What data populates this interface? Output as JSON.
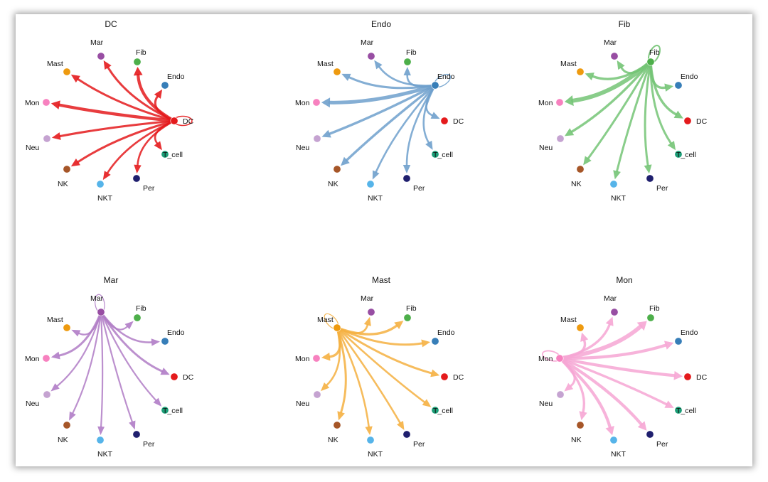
{
  "panels": [
    {
      "title": "DC",
      "source": "DC",
      "color": "#E41A1C",
      "edges": [
        {
          "target": "DC",
          "weight": 2
        },
        {
          "target": "Endo",
          "weight": 2.5
        },
        {
          "target": "Fib",
          "weight": 4
        },
        {
          "target": "Mar",
          "weight": 2.5
        },
        {
          "target": "Mast",
          "weight": 2.5
        },
        {
          "target": "Mon",
          "weight": 4
        },
        {
          "target": "Neu",
          "weight": 2.5
        },
        {
          "target": "NK",
          "weight": 2.5
        },
        {
          "target": "NKT",
          "weight": 2
        },
        {
          "target": "Per",
          "weight": 2
        },
        {
          "target": "T_cell",
          "weight": 2
        }
      ]
    },
    {
      "title": "Endo",
      "source": "Endo",
      "color": "#6FA0CC",
      "edges": [
        {
          "target": "Endo",
          "weight": 1.5
        },
        {
          "target": "Fib",
          "weight": 2
        },
        {
          "target": "Mar",
          "weight": 2
        },
        {
          "target": "Mast",
          "weight": 2.5
        },
        {
          "target": "Mon",
          "weight": 5
        },
        {
          "target": "Neu",
          "weight": 3
        },
        {
          "target": "NK",
          "weight": 3
        },
        {
          "target": "NKT",
          "weight": 2
        },
        {
          "target": "Per",
          "weight": 2
        },
        {
          "target": "T_cell",
          "weight": 2
        },
        {
          "target": "DC",
          "weight": 2
        }
      ]
    },
    {
      "title": "Fib",
      "source": "Fib",
      "color": "#74C476",
      "edges": [
        {
          "target": "Fib",
          "weight": 3
        },
        {
          "target": "Mar",
          "weight": 2.5
        },
        {
          "target": "Mast",
          "weight": 3
        },
        {
          "target": "Mon",
          "weight": 6
        },
        {
          "target": "Neu",
          "weight": 3
        },
        {
          "target": "NK",
          "weight": 2.5
        },
        {
          "target": "NKT",
          "weight": 2.5
        },
        {
          "target": "Per",
          "weight": 2.5
        },
        {
          "target": "T_cell",
          "weight": 2.5
        },
        {
          "target": "DC",
          "weight": 3
        },
        {
          "target": "Endo",
          "weight": 3
        }
      ]
    },
    {
      "title": "Mar",
      "source": "Mar",
      "color": "#B07CC6",
      "edges": [
        {
          "target": "Mar",
          "weight": 1
        },
        {
          "target": "Mast",
          "weight": 1.5
        },
        {
          "target": "Fib",
          "weight": 1.5
        },
        {
          "target": "Endo",
          "weight": 2
        },
        {
          "target": "DC",
          "weight": 2.5
        },
        {
          "target": "T_cell",
          "weight": 1.5
        },
        {
          "target": "Per",
          "weight": 1.5
        },
        {
          "target": "NKT",
          "weight": 1.5
        },
        {
          "target": "NK",
          "weight": 1.5
        },
        {
          "target": "Neu",
          "weight": 1.5
        },
        {
          "target": "Mon",
          "weight": 2.5
        }
      ]
    },
    {
      "title": "Mast",
      "source": "Mast",
      "color": "#F5B041",
      "edges": [
        {
          "target": "Mast",
          "weight": 1
        },
        {
          "target": "Mar",
          "weight": 2
        },
        {
          "target": "Fib",
          "weight": 3
        },
        {
          "target": "Endo",
          "weight": 2.5
        },
        {
          "target": "DC",
          "weight": 2.5
        },
        {
          "target": "T_cell",
          "weight": 2
        },
        {
          "target": "Per",
          "weight": 2
        },
        {
          "target": "NKT",
          "weight": 2
        },
        {
          "target": "NK",
          "weight": 2.5
        },
        {
          "target": "Neu",
          "weight": 2
        },
        {
          "target": "Mon",
          "weight": 3
        }
      ]
    },
    {
      "title": "Mon",
      "source": "Mon",
      "color": "#F6A6D4",
      "edges": [
        {
          "target": "Mon",
          "weight": 2.5
        },
        {
          "target": "Mast",
          "weight": 3
        },
        {
          "target": "Mar",
          "weight": 3
        },
        {
          "target": "Fib",
          "weight": 6
        },
        {
          "target": "Endo",
          "weight": 4
        },
        {
          "target": "DC",
          "weight": 4
        },
        {
          "target": "T_cell",
          "weight": 3
        },
        {
          "target": "Per",
          "weight": 4
        },
        {
          "target": "NKT",
          "weight": 4
        },
        {
          "target": "NK",
          "weight": 3
        },
        {
          "target": "Neu",
          "weight": 2.5
        }
      ]
    }
  ],
  "nodes": [
    {
      "name": "DC",
      "color": "#E41A1C"
    },
    {
      "name": "Endo",
      "color": "#377EB8"
    },
    {
      "name": "Fib",
      "color": "#4DAF4A"
    },
    {
      "name": "Mar",
      "color": "#984EA3"
    },
    {
      "name": "Mast",
      "color": "#EE9A0F"
    },
    {
      "name": "Mon",
      "color": "#F781BF"
    },
    {
      "name": "Neu",
      "color": "#C5A3D1"
    },
    {
      "name": "NK",
      "color": "#A65628"
    },
    {
      "name": "NKT",
      "color": "#56B4E9"
    },
    {
      "name": "Per",
      "color": "#1F1F6E"
    },
    {
      "name": "T_cell",
      "color": "#1B9E77"
    }
  ]
}
